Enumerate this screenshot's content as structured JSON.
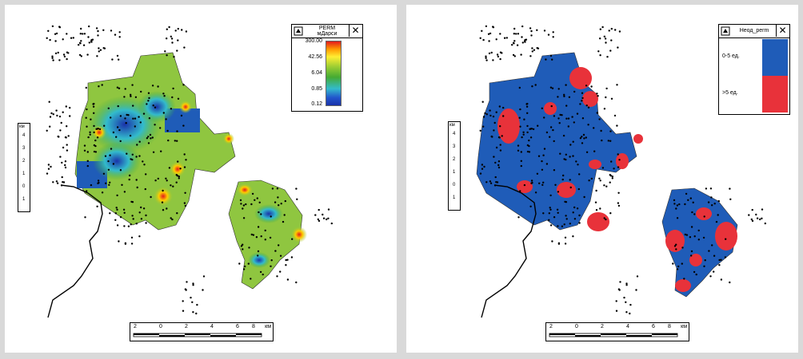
{
  "left_map": {
    "legend": {
      "title_line1": "PERM",
      "title_line2": "мДарси",
      "close_glyph": "✕",
      "icon": "layer-style-icon",
      "ticks": [
        "300.00",
        "42.56",
        "6.04",
        "0.85",
        "0.12"
      ],
      "scale": "log",
      "color_ramp": [
        "#e31a1c",
        "#ff9900",
        "#ffee33",
        "#99cc33",
        "#44aa33",
        "#33bbcc",
        "#2255cc",
        "#1a33aa"
      ]
    },
    "vertical_scale": {
      "unit": "км",
      "ticks": [
        "4",
        "3",
        "2",
        "1",
        "0",
        "1"
      ]
    },
    "horizontal_scale": {
      "ticks": [
        "2",
        "0",
        "2",
        "4",
        "6",
        "8"
      ],
      "unit": "км"
    }
  },
  "right_map": {
    "legend": {
      "title": "Неод_perm",
      "close_glyph": "✕",
      "icon": "layer-style-icon",
      "classes": [
        {
          "label": "0-5 ед.",
          "color": "#1f5cb8"
        },
        {
          "label": ">5 ед.",
          "color": "#e8323a"
        }
      ]
    },
    "vertical_scale": {
      "unit": "км",
      "ticks": [
        "4",
        "3",
        "2",
        "1",
        "0",
        "1"
      ]
    },
    "horizontal_scale": {
      "ticks": [
        "2",
        "0",
        "2",
        "4",
        "6",
        "8"
      ],
      "unit": "км"
    }
  }
}
